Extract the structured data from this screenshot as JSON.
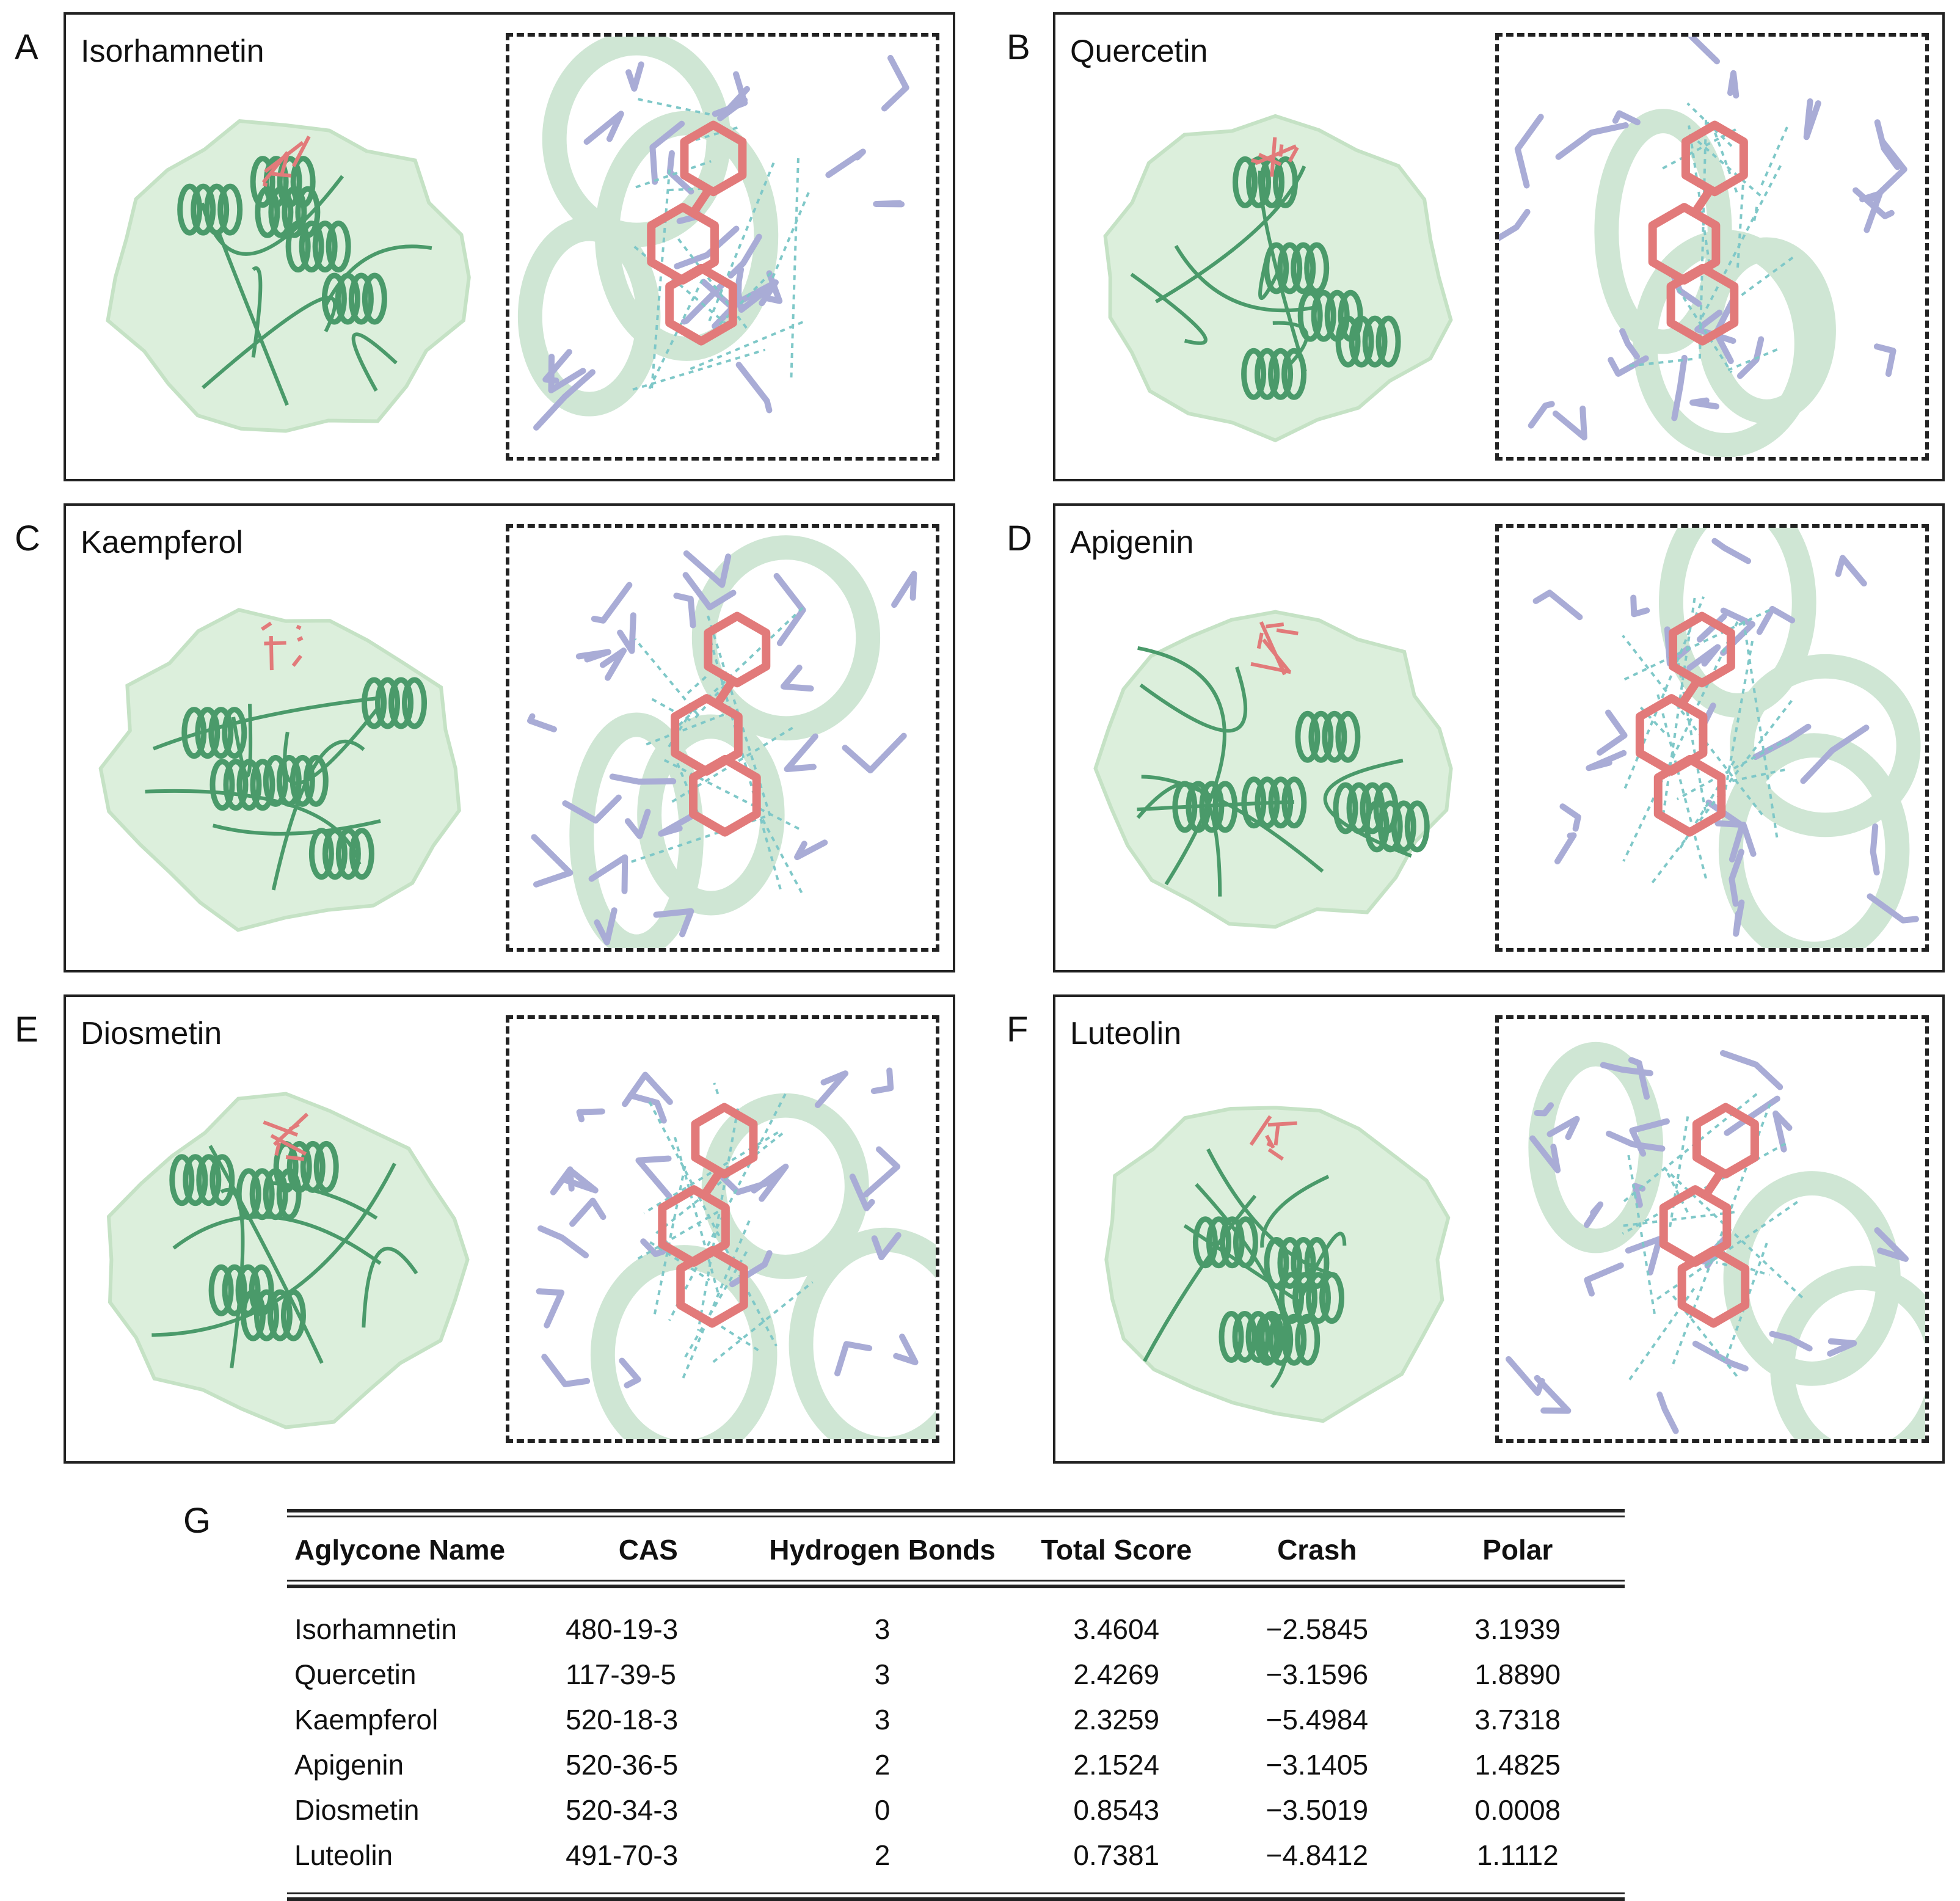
{
  "panels": [
    {
      "letter": "A",
      "title": "Isorhamnetin"
    },
    {
      "letter": "B",
      "title": "Quercetin"
    },
    {
      "letter": "C",
      "title": "Kaempferol"
    },
    {
      "letter": "D",
      "title": "Apigenin"
    },
    {
      "letter": "E",
      "title": "Diosmetin"
    },
    {
      "letter": "F",
      "title": "Luteolin"
    }
  ],
  "table": {
    "letter": "G",
    "headers": [
      "Aglycone Name",
      "CAS",
      "Hydrogen Bonds",
      "Total Score",
      "Crash",
      "Polar"
    ],
    "rows": [
      [
        "Isorhamnetin",
        "480-19-3",
        "3",
        "3.4604",
        "−2.5845",
        "3.1939"
      ],
      [
        "Quercetin",
        "117-39-5",
        "3",
        "2.4269",
        "−3.1596",
        "1.8890"
      ],
      [
        "Kaempferol",
        "520-18-3",
        "3",
        "2.3259",
        "−5.4984",
        "3.7318"
      ],
      [
        "Apigenin",
        "520-36-5",
        "2",
        "2.1524",
        "−3.1405",
        "1.4825"
      ],
      [
        "Diosmetin",
        "520-34-3",
        "0",
        "0.8543",
        "−3.5019",
        "0.0008"
      ],
      [
        "Luteolin",
        "491-70-3",
        "2",
        "0.7381",
        "−4.8412",
        "1.1112"
      ]
    ]
  },
  "colors": {
    "surface": "#dcefdc",
    "cartoon": "#4a9a6a",
    "ligand": "#e27a7a",
    "residue": "#a9acd6",
    "hbond": "#7fc8c8"
  }
}
